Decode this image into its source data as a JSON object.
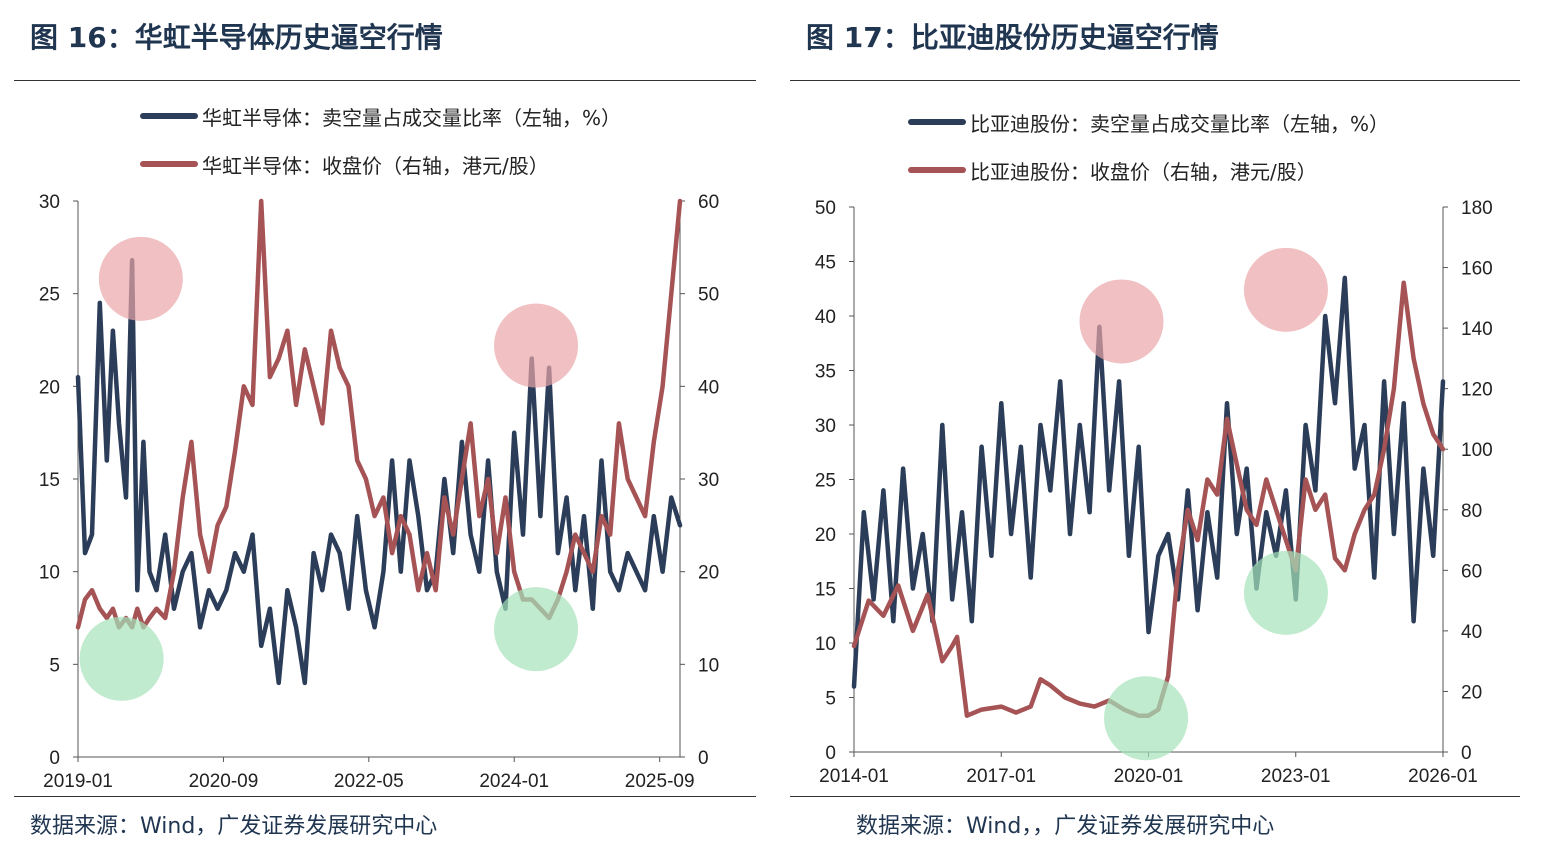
{
  "colors": {
    "navy": "#2b3d58",
    "maroon": "#a65355",
    "circle_red": "#e9a5a8",
    "circle_green": "#a5e3bb",
    "title": "#1f3550"
  },
  "chart_data": [
    {
      "type": "line",
      "title": "图 16：华虹半导体历史逼空行情",
      "legend": [
        "华虹半导体：卖空量占成交量比率（左轴，%）",
        "华虹半导体：收盘价（右轴，港元/股）"
      ],
      "x_start": 2019.0,
      "x_end": 2025.9,
      "x_ticks": [
        {
          "label": "2019-01",
          "value": 2019.0
        },
        {
          "label": "2020-09",
          "value": 2020.667
        },
        {
          "label": "2022-05",
          "value": 2022.333
        },
        {
          "label": "2024-01",
          "value": 2024.0
        },
        {
          "label": "2025-09",
          "value": 2025.667
        }
      ],
      "y_left": {
        "range": [
          0,
          30
        ],
        "ticks": [
          "0",
          "5",
          "10",
          "15",
          "20",
          "25",
          "30"
        ]
      },
      "y_right": {
        "range": [
          0,
          60
        ],
        "ticks": [
          "0",
          "10",
          "20",
          "30",
          "40",
          "50",
          "60"
        ]
      },
      "series": [
        {
          "name": "华虹半导体：卖空量占成交量比率（左轴，%）",
          "axis": "left",
          "x": [
            2019.0,
            2019.08,
            2019.16,
            2019.25,
            2019.33,
            2019.4,
            2019.47,
            2019.55,
            2019.62,
            2019.68,
            2019.75,
            2019.82,
            2019.9,
            2020.0,
            2020.1,
            2020.2,
            2020.3,
            2020.4,
            2020.5,
            2020.6,
            2020.7,
            2020.8,
            2020.9,
            2021.0,
            2021.1,
            2021.2,
            2021.3,
            2021.4,
            2021.5,
            2021.6,
            2021.7,
            2021.8,
            2021.9,
            2022.0,
            2022.1,
            2022.2,
            2022.3,
            2022.4,
            2022.5,
            2022.6,
            2022.7,
            2022.8,
            2022.9,
            2023.0,
            2023.1,
            2023.2,
            2023.3,
            2023.4,
            2023.5,
            2023.6,
            2023.7,
            2023.8,
            2023.9,
            2024.0,
            2024.1,
            2024.2,
            2024.3,
            2024.4,
            2024.5,
            2024.6,
            2024.7,
            2024.8,
            2024.9,
            2025.0,
            2025.1,
            2025.2,
            2025.3,
            2025.4,
            2025.5,
            2025.6,
            2025.7,
            2025.8,
            2025.9
          ],
          "y": [
            20.5,
            11,
            12,
            24.5,
            16,
            23,
            18,
            14,
            26.8,
            9,
            17,
            10,
            9,
            12,
            8,
            10,
            11,
            7,
            9,
            8,
            9,
            11,
            10,
            12,
            6,
            8,
            4,
            9,
            7,
            4,
            11,
            9,
            12,
            11,
            8,
            13,
            9,
            7,
            10,
            16,
            10,
            16,
            13,
            9,
            10,
            15,
            11,
            17,
            12,
            10,
            16,
            10,
            8,
            17.5,
            12,
            21.5,
            13,
            21,
            11,
            14,
            9,
            13,
            8,
            16,
            10,
            9,
            11,
            10,
            9,
            13,
            10,
            14,
            12.5
          ]
        },
        {
          "name": "华虹半导体：收盘价（右轴，港元/股）",
          "axis": "right",
          "x": [
            2019.0,
            2019.08,
            2019.16,
            2019.25,
            2019.33,
            2019.4,
            2019.47,
            2019.55,
            2019.62,
            2019.68,
            2019.75,
            2019.82,
            2019.9,
            2020.0,
            2020.1,
            2020.2,
            2020.3,
            2020.4,
            2020.5,
            2020.6,
            2020.7,
            2020.8,
            2020.9,
            2021.0,
            2021.1,
            2021.2,
            2021.3,
            2021.4,
            2021.5,
            2021.6,
            2021.7,
            2021.8,
            2021.9,
            2022.0,
            2022.1,
            2022.2,
            2022.3,
            2022.4,
            2022.5,
            2022.6,
            2022.7,
            2022.8,
            2022.9,
            2023.0,
            2023.1,
            2023.2,
            2023.3,
            2023.4,
            2023.5,
            2023.6,
            2023.7,
            2023.8,
            2023.9,
            2024.0,
            2024.1,
            2024.2,
            2024.3,
            2024.4,
            2024.5,
            2024.6,
            2024.7,
            2024.8,
            2024.9,
            2025.0,
            2025.1,
            2025.2,
            2025.3,
            2025.4,
            2025.5,
            2025.6,
            2025.7,
            2025.8,
            2025.9
          ],
          "y": [
            14,
            17,
            18,
            16,
            15,
            16,
            14,
            15,
            14,
            16,
            14,
            15,
            16,
            15,
            20,
            28,
            34,
            24,
            20,
            25,
            27,
            33,
            40,
            38,
            60,
            41,
            43,
            46,
            38,
            44,
            40,
            36,
            46,
            42,
            40,
            32,
            30,
            26,
            28,
            22,
            26,
            24,
            18,
            22,
            18,
            28,
            24,
            30,
            36,
            26,
            30,
            22,
            28,
            20,
            17,
            17,
            16,
            15,
            17,
            20,
            24,
            22,
            20,
            26,
            24,
            36,
            30,
            28,
            26,
            34,
            40,
            50,
            60
          ]
        }
      ],
      "highlights": [
        {
          "kind": "red",
          "x": 2019.72,
          "y": 25.8
        },
        {
          "kind": "green",
          "x": 2019.5,
          "y": 5.3
        },
        {
          "kind": "red",
          "x": 2024.25,
          "y": 22.2
        },
        {
          "kind": "green",
          "x": 2024.25,
          "y": 6.9
        }
      ],
      "source": "数据来源：Wind，广发证券发展研究中心"
    },
    {
      "type": "line",
      "title": "图 17：比亚迪股份历史逼空行情",
      "legend": [
        "比亚迪股份：卖空量占成交量比率（左轴，%）",
        "比亚迪股份：收盘价（右轴，港元/股）"
      ],
      "x_start": 2014.0,
      "x_end": 2026.0,
      "x_ticks": [
        {
          "label": "2014-01",
          "value": 2014.0
        },
        {
          "label": "2017-01",
          "value": 2017.0
        },
        {
          "label": "2020-01",
          "value": 2020.0
        },
        {
          "label": "2023-01",
          "value": 2023.0
        },
        {
          "label": "2026-01",
          "value": 2026.0
        }
      ],
      "y_left": {
        "range": [
          0,
          50
        ],
        "ticks": [
          "0",
          "5",
          "10",
          "15",
          "20",
          "25",
          "30",
          "35",
          "40",
          "45",
          "50"
        ]
      },
      "y_right": {
        "range": [
          0,
          180
        ],
        "ticks": [
          "0",
          "20",
          "40",
          "60",
          "80",
          "100",
          "120",
          "140",
          "160",
          "180"
        ]
      },
      "series": [
        {
          "name": "比亚迪股份：卖空量占成交量比率（左轴，%）",
          "axis": "left",
          "x": [
            2014.0,
            2014.2,
            2014.4,
            2014.6,
            2014.8,
            2015.0,
            2015.2,
            2015.4,
            2015.6,
            2015.8,
            2016.0,
            2016.2,
            2016.4,
            2016.6,
            2016.8,
            2017.0,
            2017.2,
            2017.4,
            2017.6,
            2017.8,
            2018.0,
            2018.2,
            2018.4,
            2018.6,
            2018.8,
            2019.0,
            2019.2,
            2019.4,
            2019.6,
            2019.8,
            2020.0,
            2020.2,
            2020.4,
            2020.6,
            2020.8,
            2021.0,
            2021.2,
            2021.4,
            2021.6,
            2021.8,
            2022.0,
            2022.2,
            2022.4,
            2022.6,
            2022.8,
            2023.0,
            2023.2,
            2023.4,
            2023.6,
            2023.8,
            2024.0,
            2024.2,
            2024.4,
            2024.6,
            2024.8,
            2025.0,
            2025.2,
            2025.4,
            2025.6,
            2025.8,
            2026.0
          ],
          "y": [
            6,
            22,
            14,
            24,
            12,
            26,
            15,
            20,
            12,
            30,
            14,
            22,
            12,
            28,
            18,
            32,
            20,
            28,
            16,
            30,
            24,
            34,
            20,
            30,
            22,
            39,
            24,
            34,
            18,
            28,
            11,
            18,
            20,
            14,
            24,
            13,
            22,
            16,
            32,
            20,
            26,
            15,
            22,
            18,
            24,
            14,
            30,
            24,
            40,
            32,
            43.5,
            26,
            30,
            16,
            34,
            20,
            32,
            12,
            26,
            18,
            34
          ]
        },
        {
          "name": "比亚迪股份：收盘价（右轴，港元/股）",
          "axis": "right",
          "x": [
            2014.0,
            2014.3,
            2014.6,
            2014.9,
            2015.2,
            2015.5,
            2015.8,
            2016.0,
            2016.1,
            2016.3,
            2016.6,
            2017.0,
            2017.3,
            2017.6,
            2017.8,
            2018.0,
            2018.3,
            2018.6,
            2018.9,
            2019.2,
            2019.5,
            2019.8,
            2020.0,
            2020.2,
            2020.4,
            2020.6,
            2020.8,
            2021.0,
            2021.2,
            2021.4,
            2021.6,
            2021.8,
            2022.0,
            2022.2,
            2022.4,
            2022.6,
            2022.8,
            2023.0,
            2023.2,
            2023.4,
            2023.6,
            2023.8,
            2024.0,
            2024.2,
            2024.4,
            2024.6,
            2024.8,
            2025.0,
            2025.2,
            2025.4,
            2025.6,
            2025.8,
            2026.0
          ],
          "y": [
            35,
            50,
            45,
            55,
            40,
            52,
            30,
            35,
            38,
            12,
            14,
            15,
            13,
            15,
            24,
            22,
            18,
            16,
            15,
            17,
            14,
            12,
            12,
            14,
            25,
            60,
            80,
            70,
            90,
            85,
            110,
            95,
            80,
            75,
            90,
            80,
            70,
            60,
            90,
            80,
            85,
            64,
            60,
            72,
            80,
            85,
            100,
            120,
            155,
            130,
            115,
            105,
            100
          ]
        }
      ],
      "highlights": [
        {
          "kind": "red",
          "x": 2019.45,
          "y": 39.5
        },
        {
          "kind": "green",
          "x": 2019.95,
          "y": 3.1
        },
        {
          "kind": "red",
          "x": 2022.8,
          "y": 42.4
        },
        {
          "kind": "green",
          "x": 2022.8,
          "y": 14.6
        }
      ],
      "source": "数据来源：Wind，，广发证券发展研究中心"
    }
  ]
}
